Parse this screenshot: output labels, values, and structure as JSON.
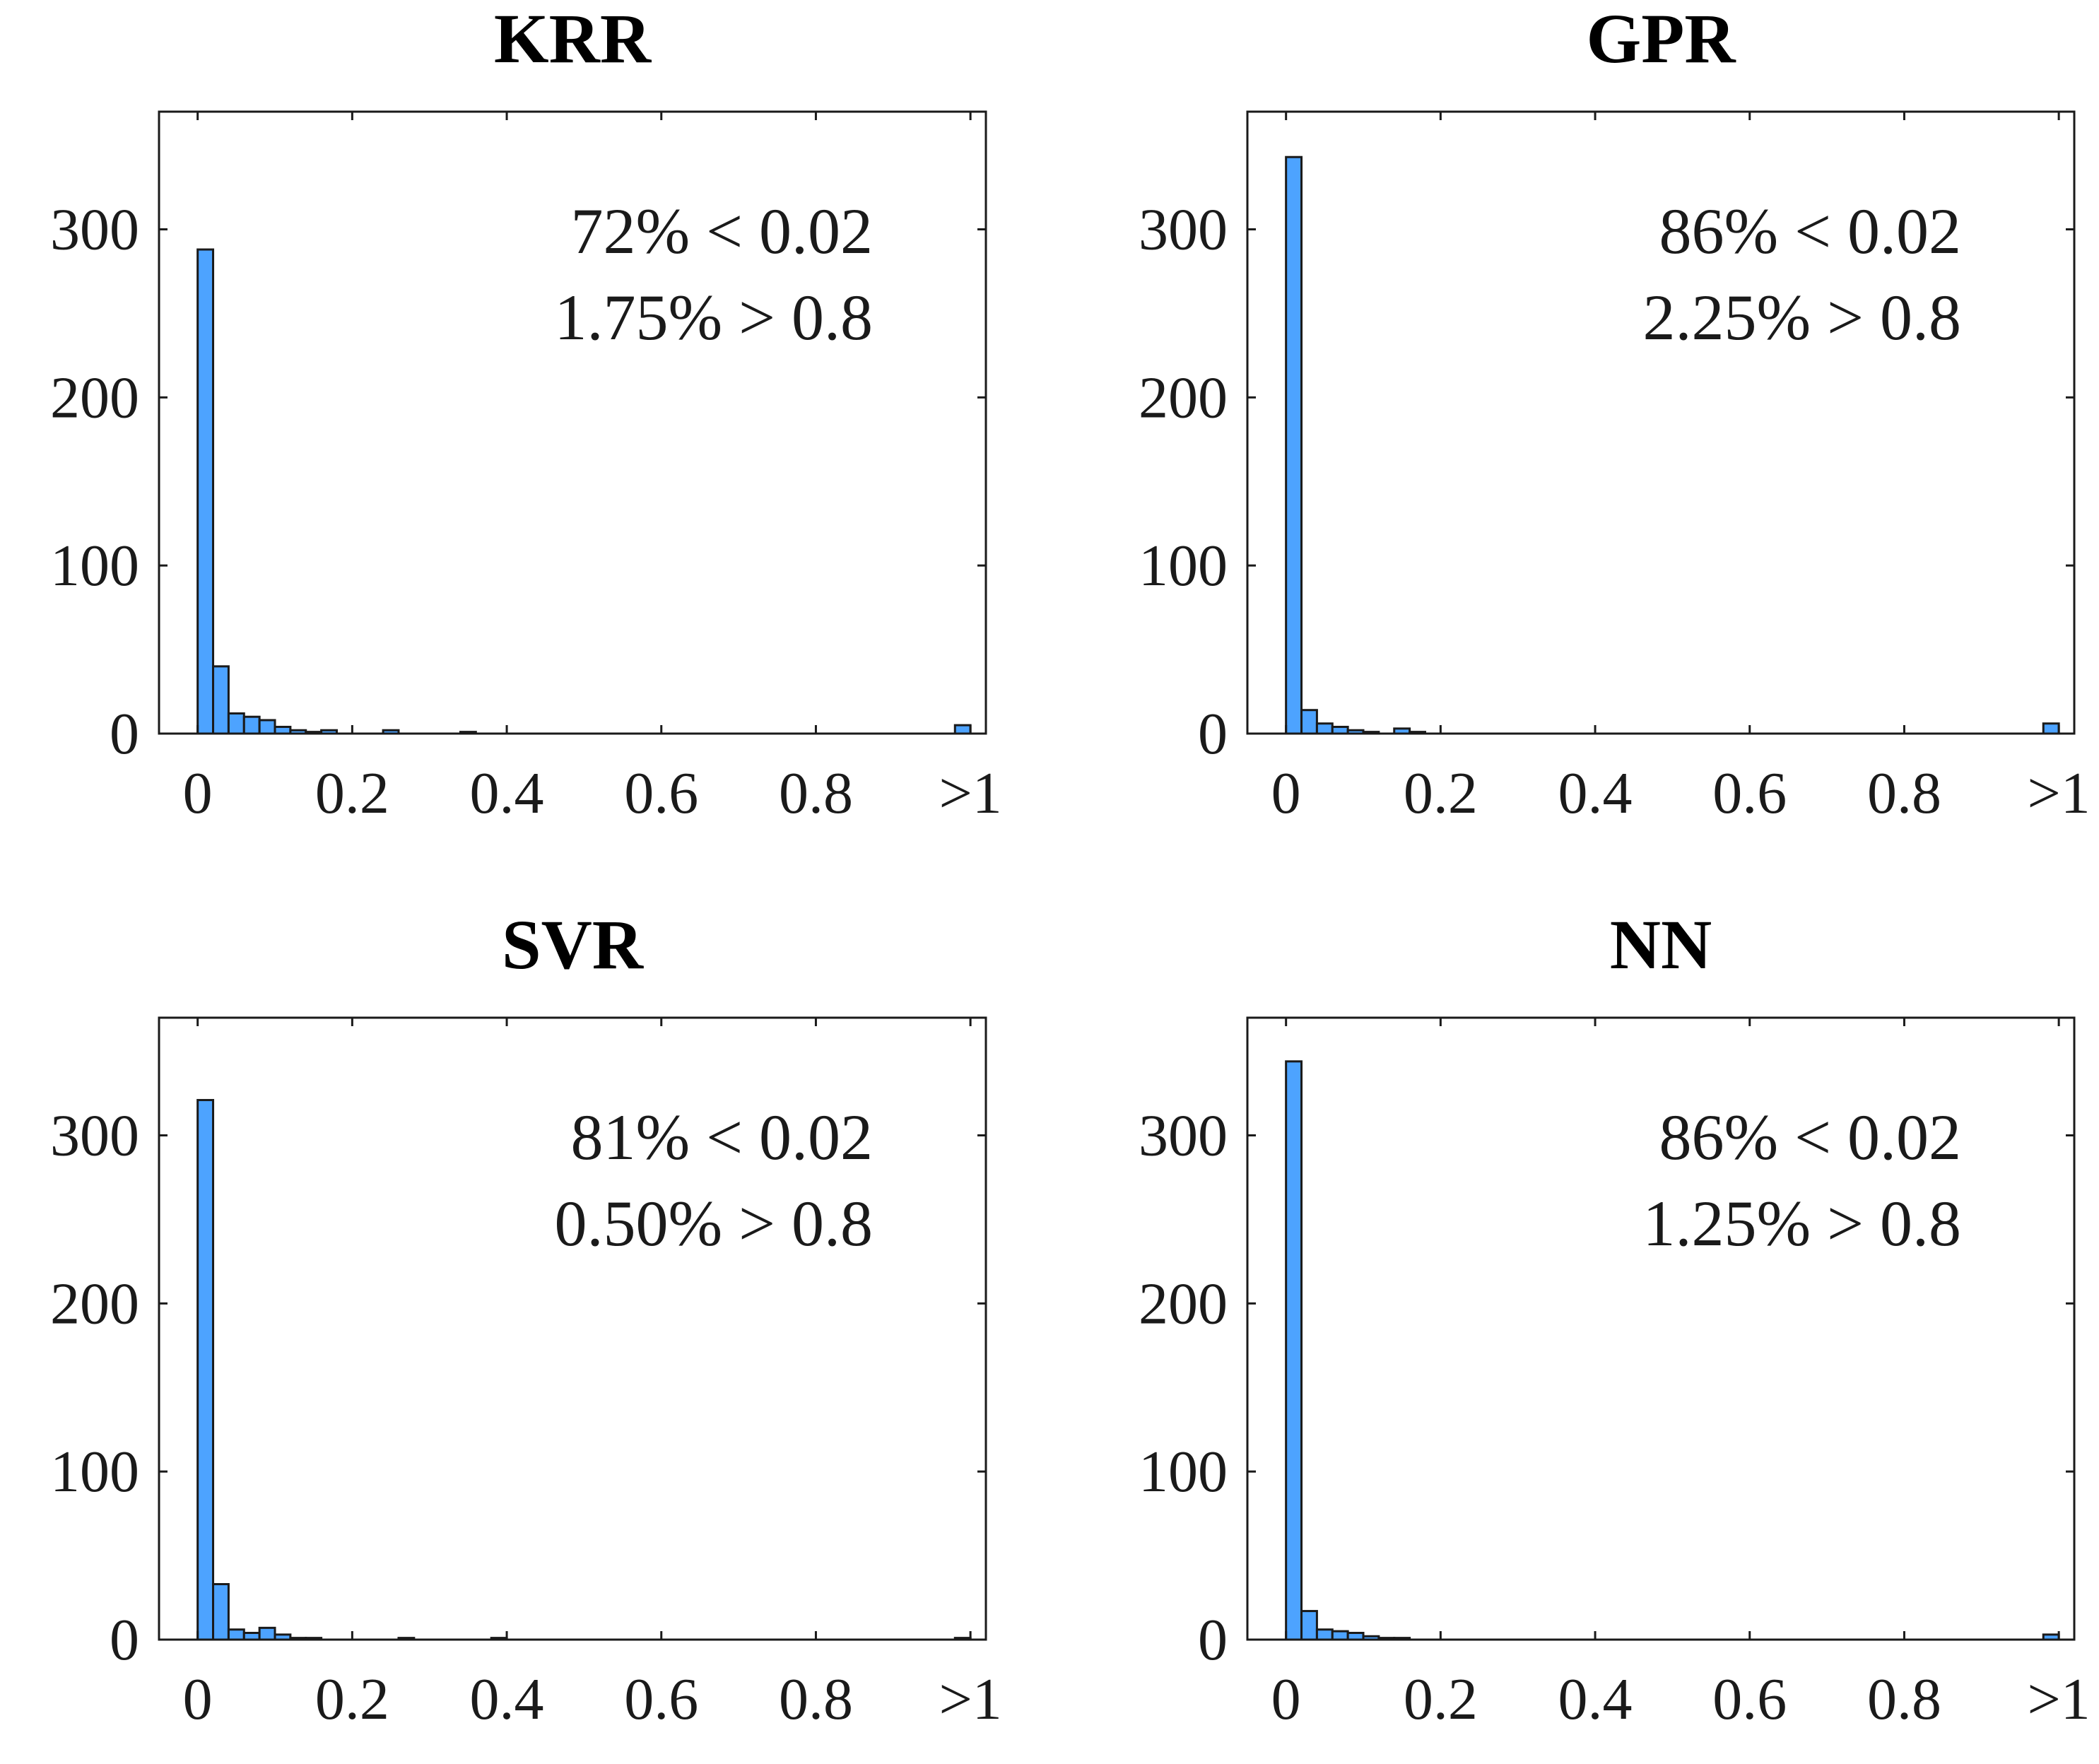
{
  "chart_data": [
    {
      "type": "bar",
      "title": "KRR",
      "annotation": [
        "72% < 0.02",
        "1.75% > 0.8"
      ],
      "bar_color": "#4da3ff",
      "ylim": [
        0,
        370
      ],
      "yticks": [
        0,
        100,
        200,
        300
      ],
      "xlim": [
        -0.05,
        1.02
      ],
      "xticks": [
        0,
        0.2,
        0.4,
        0.6,
        0.8,
        1.0
      ],
      "xtick_labels": [
        "0",
        "0.2",
        "0.4",
        "0.6",
        "0.8",
        ">1"
      ],
      "bin_width": 0.02,
      "bins": [
        0.0,
        0.02,
        0.04,
        0.06,
        0.08,
        0.1,
        0.12,
        0.14,
        0.16,
        0.24,
        0.34,
        0.98
      ],
      "values": [
        288,
        40,
        12,
        10,
        8,
        4,
        2,
        1,
        2,
        2,
        1,
        5
      ]
    },
    {
      "type": "bar",
      "title": "GPR",
      "annotation": [
        "86% < 0.02",
        "2.25% > 0.8"
      ],
      "bar_color": "#4da3ff",
      "ylim": [
        0,
        370
      ],
      "yticks": [
        0,
        100,
        200,
        300
      ],
      "xlim": [
        -0.05,
        1.02
      ],
      "xticks": [
        0,
        0.2,
        0.4,
        0.6,
        0.8,
        1.0
      ],
      "xtick_labels": [
        "0",
        "0.2",
        "0.4",
        "0.6",
        "0.8",
        ">1"
      ],
      "bin_width": 0.02,
      "bins": [
        0.0,
        0.02,
        0.04,
        0.06,
        0.08,
        0.1,
        0.14,
        0.16,
        0.98
      ],
      "values": [
        343,
        14,
        6,
        4,
        2,
        1,
        3,
        1,
        6
      ]
    },
    {
      "type": "bar",
      "title": "SVR",
      "annotation": [
        "81% < 0.02",
        "0.50% > 0.8"
      ],
      "bar_color": "#4da3ff",
      "ylim": [
        0,
        370
      ],
      "yticks": [
        0,
        100,
        200,
        300
      ],
      "xlim": [
        -0.05,
        1.02
      ],
      "xticks": [
        0,
        0.2,
        0.4,
        0.6,
        0.8,
        1.0
      ],
      "xtick_labels": [
        "0",
        "0.2",
        "0.4",
        "0.6",
        "0.8",
        ">1"
      ],
      "bin_width": 0.02,
      "bins": [
        0.0,
        0.02,
        0.04,
        0.06,
        0.08,
        0.1,
        0.12,
        0.14,
        0.26,
        0.38,
        0.98
      ],
      "values": [
        321,
        33,
        6,
        4,
        7,
        3,
        1,
        1,
        1,
        1,
        1
      ]
    },
    {
      "type": "bar",
      "title": "NN",
      "annotation": [
        "86% < 0.02",
        "1.25% > 0.8"
      ],
      "bar_color": "#4da3ff",
      "ylim": [
        0,
        370
      ],
      "yticks": [
        0,
        100,
        200,
        300
      ],
      "xlim": [
        -0.05,
        1.02
      ],
      "xticks": [
        0,
        0.2,
        0.4,
        0.6,
        0.8,
        1.0
      ],
      "xtick_labels": [
        "0",
        "0.2",
        "0.4",
        "0.6",
        "0.8",
        ">1"
      ],
      "bin_width": 0.02,
      "bins": [
        0.0,
        0.02,
        0.04,
        0.06,
        0.08,
        0.1,
        0.12,
        0.14,
        0.98
      ],
      "values": [
        344,
        17,
        6,
        5,
        4,
        2,
        1,
        1,
        3
      ]
    }
  ]
}
